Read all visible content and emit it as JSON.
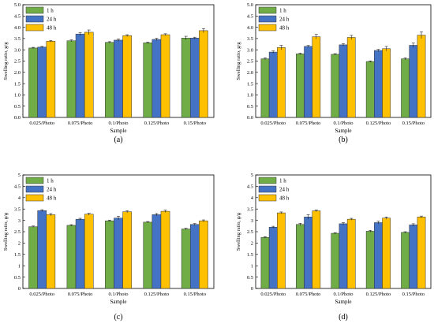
{
  "colors": {
    "1 h": "#70AD47",
    "24 h": "#4472C4",
    "48 h": "#FFC000"
  },
  "chart_data": [
    {
      "type": "bar",
      "panel_label": "(a)",
      "xlabel": "Sample",
      "ylabel": "Swelling ratio, g/g",
      "ylim": [
        0,
        5
      ],
      "yticks": [
        "0.0",
        "0.5",
        "1.0",
        "1.5",
        "2.0",
        "2.5",
        "3.0",
        "3.5",
        "4.0",
        "4.5",
        "5.0"
      ],
      "legend": "top-left",
      "categories": [
        "0.025/Photo",
        "0.075/Photo",
        "0.1/Photo",
        "0.125/Photo",
        "0.15/Photo"
      ],
      "series": [
        {
          "name": "1 h",
          "values": [
            3.08,
            3.4,
            3.33,
            3.31,
            3.52
          ],
          "errors": [
            0.03,
            0.04,
            0.03,
            0.03,
            0.08
          ]
        },
        {
          "name": "24 h",
          "values": [
            3.12,
            3.7,
            3.43,
            3.46,
            3.52
          ],
          "errors": [
            0.03,
            0.06,
            0.05,
            0.05,
            0.04
          ]
        },
        {
          "name": "48 h",
          "values": [
            3.38,
            3.78,
            3.63,
            3.67,
            3.85
          ],
          "errors": [
            0.03,
            0.1,
            0.04,
            0.04,
            0.09
          ]
        }
      ]
    },
    {
      "type": "bar",
      "panel_label": "(b)",
      "xlabel": "Sample",
      "ylabel": "Swelling ratio, g/g",
      "ylim": [
        0,
        5
      ],
      "yticks": [
        "0.0",
        "0.5",
        "1.0",
        "1.5",
        "2.0",
        "2.5",
        "3.0",
        "3.5",
        "4.0",
        "4.5",
        "5.0"
      ],
      "legend": "top-left",
      "categories": [
        "0.025/Photo",
        "0.075/Photo",
        "0.1/Photo",
        "0.125/Photo",
        "0.15/Photo"
      ],
      "series": [
        {
          "name": "1 h",
          "values": [
            2.6,
            2.82,
            2.8,
            2.48,
            2.6
          ],
          "errors": [
            0.04,
            0.03,
            0.03,
            0.03,
            0.04
          ]
        },
        {
          "name": "24 h",
          "values": [
            2.9,
            3.15,
            3.22,
            2.97,
            3.2
          ],
          "errors": [
            0.05,
            0.04,
            0.05,
            0.05,
            0.1
          ]
        },
        {
          "name": "48 h",
          "values": [
            3.1,
            3.58,
            3.55,
            3.05,
            3.65
          ],
          "errors": [
            0.1,
            0.1,
            0.09,
            0.1,
            0.15
          ]
        }
      ]
    },
    {
      "type": "bar",
      "panel_label": "(c)",
      "xlabel": "Sample",
      "ylabel": "Swelling ratio, g/g",
      "ylim": [
        0,
        5
      ],
      "yticks": [
        "0",
        "0.5",
        "1",
        "1.5",
        "2",
        "2.5",
        "3",
        "3.5",
        "4",
        "4.5",
        "5"
      ],
      "legend": "top-left",
      "categories": [
        "0.025/Photo",
        "0.075/Photo",
        "0.1/Photo",
        "0.125/Photo",
        "0.15/Photo"
      ],
      "series": [
        {
          "name": "1 h",
          "values": [
            2.72,
            2.78,
            2.98,
            2.92,
            2.62
          ],
          "errors": [
            0.03,
            0.03,
            0.03,
            0.03,
            0.03
          ]
        },
        {
          "name": "24 h",
          "values": [
            3.43,
            3.05,
            3.1,
            3.25,
            2.82
          ],
          "errors": [
            0.04,
            0.04,
            0.08,
            0.05,
            0.04
          ]
        },
        {
          "name": "48 h",
          "values": [
            3.25,
            3.27,
            3.38,
            3.4,
            2.98
          ],
          "errors": [
            0.05,
            0.04,
            0.05,
            0.05,
            0.04
          ]
        }
      ]
    },
    {
      "type": "bar",
      "panel_label": "(d)",
      "xlabel": "Sample",
      "ylabel": "Swelling ratio, g/g",
      "ylim": [
        0,
        5
      ],
      "yticks": [
        "0",
        "0.5",
        "1",
        "1.5",
        "2",
        "2.5",
        "3",
        "3.5",
        "4",
        "4.5",
        "5"
      ],
      "legend": "top-left",
      "categories": [
        "0.025/Photo",
        "0.075/Photo",
        "0.1/Photo",
        "0.125/Photo",
        "0.15/Photo"
      ],
      "series": [
        {
          "name": "1 h",
          "values": [
            2.25,
            2.82,
            2.43,
            2.52,
            2.47
          ],
          "errors": [
            0.03,
            0.05,
            0.03,
            0.04,
            0.03
          ]
        },
        {
          "name": "24 h",
          "values": [
            2.7,
            3.15,
            2.85,
            2.9,
            2.8
          ],
          "errors": [
            0.04,
            0.1,
            0.05,
            0.06,
            0.05
          ]
        },
        {
          "name": "48 h",
          "values": [
            3.33,
            3.42,
            3.05,
            3.1,
            3.15
          ],
          "errors": [
            0.04,
            0.04,
            0.04,
            0.05,
            0.04
          ]
        }
      ]
    }
  ]
}
